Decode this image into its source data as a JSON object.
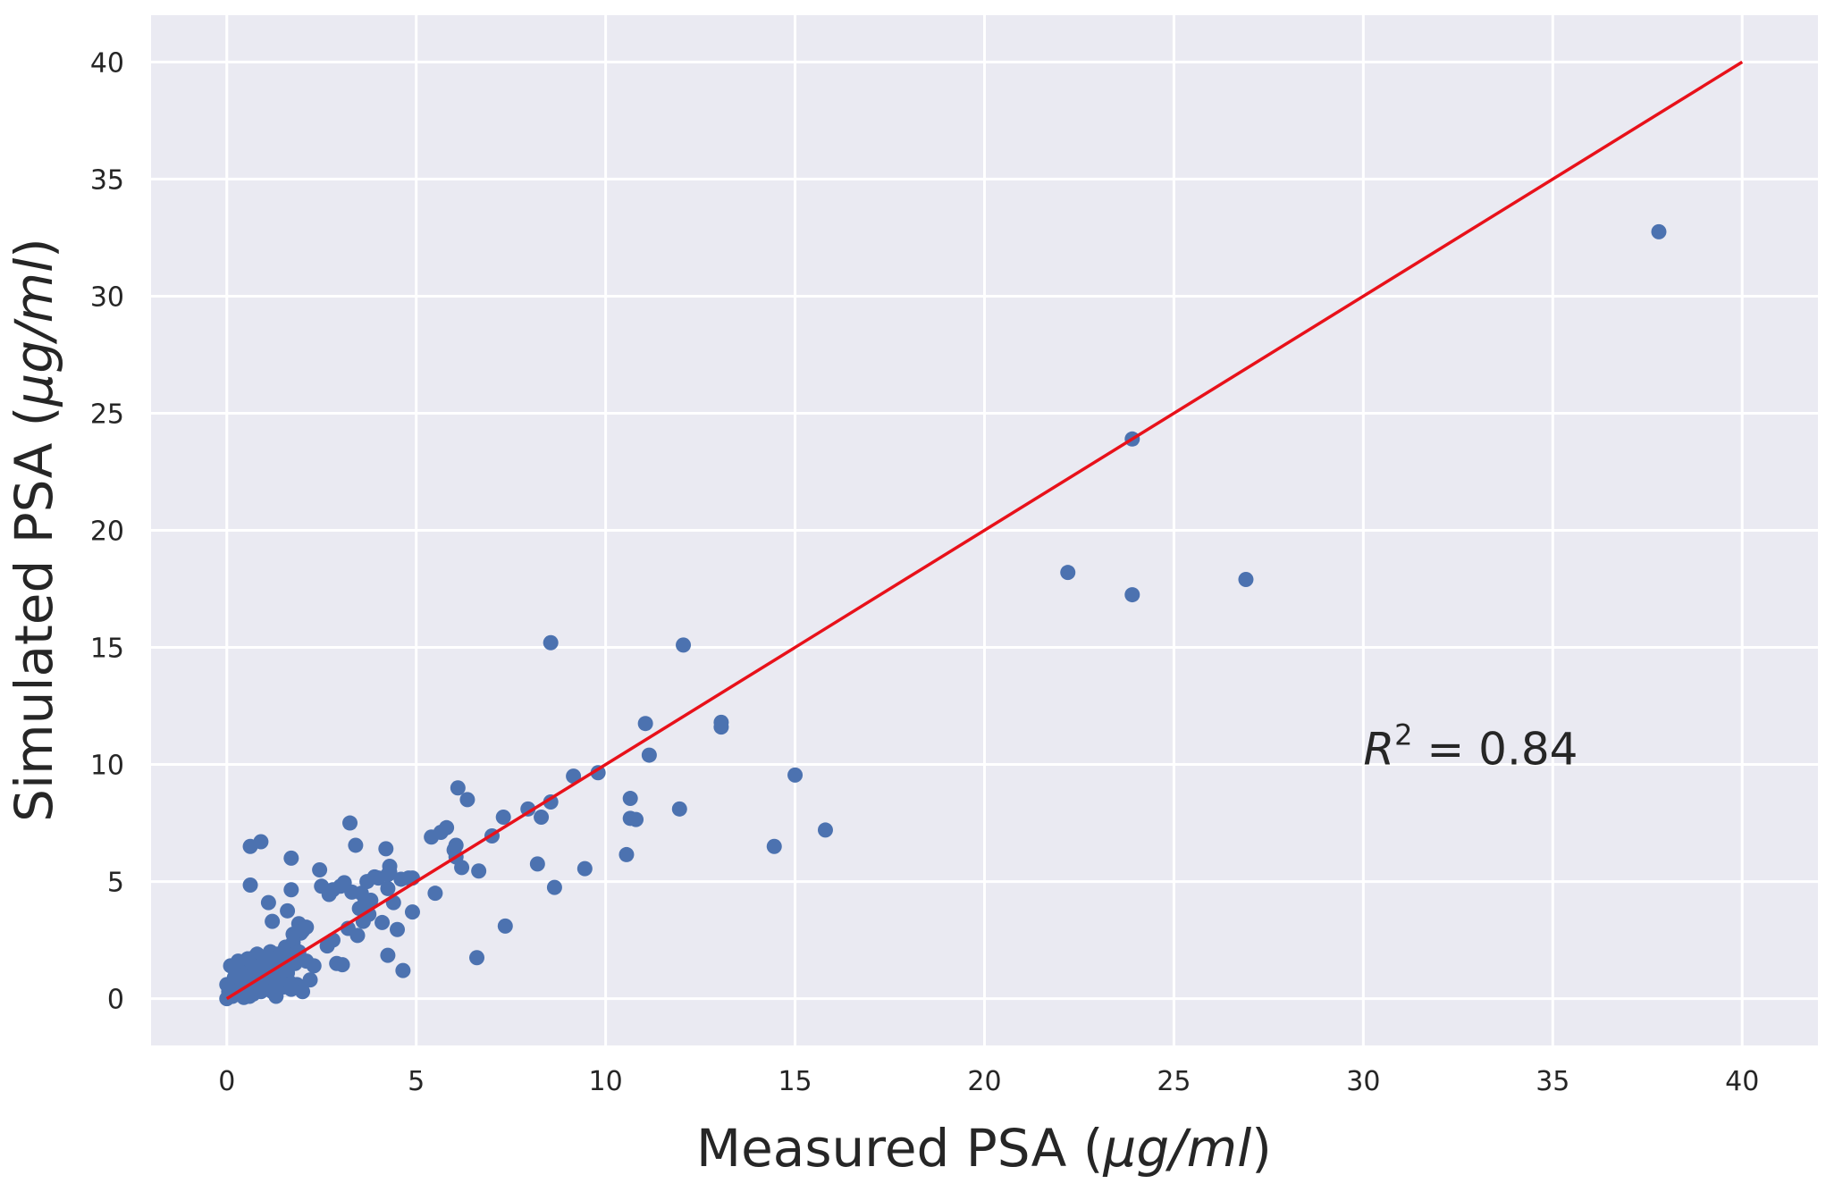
{
  "chart_data": {
    "type": "scatter",
    "xlabel": {
      "text": "Measured PSA ",
      "math": "μg/ml"
    },
    "ylabel": {
      "text": "Simulated PSA ",
      "math": "μg/ml"
    },
    "xlim": [
      -2,
      42
    ],
    "ylim": [
      -2,
      42
    ],
    "x_ticks": [
      0,
      5,
      10,
      15,
      20,
      25,
      30,
      35,
      40
    ],
    "y_ticks": [
      0,
      5,
      10,
      15,
      20,
      25,
      30,
      35,
      40
    ],
    "grid": true,
    "background_color": "#EAEAF2",
    "grid_color": "#FFFFFF",
    "point_color": "#4C72B0",
    "line_color": "#E8111A",
    "reference_line": {
      "x": [
        0,
        40
      ],
      "y": [
        0,
        40
      ]
    },
    "annotation": {
      "symbol": "R",
      "superscript": "2",
      "text": " = 0.84",
      "x": 30,
      "y": 10
    },
    "points": [
      [
        0.0,
        0.0
      ],
      [
        0.05,
        0.3
      ],
      [
        0.1,
        0.6
      ],
      [
        0.15,
        0.1
      ],
      [
        0.2,
        0.9
      ],
      [
        0.25,
        1.3
      ],
      [
        0.3,
        0.2
      ],
      [
        0.35,
        0.5
      ],
      [
        0.4,
        1.1
      ],
      [
        0.45,
        0.05
      ],
      [
        0.5,
        0.7
      ],
      [
        0.55,
        0.4
      ],
      [
        0.6,
        1.5
      ],
      [
        0.65,
        0.9
      ],
      [
        0.7,
        0.2
      ],
      [
        0.75,
        1.8
      ],
      [
        0.8,
        0.6
      ],
      [
        0.85,
        1.2
      ],
      [
        0.9,
        0.3
      ],
      [
        0.95,
        1.0
      ],
      [
        1.0,
        0.8
      ],
      [
        1.05,
        1.6
      ],
      [
        1.1,
        0.4
      ],
      [
        1.15,
        2.0
      ],
      [
        1.2,
        0.7
      ],
      [
        1.25,
        1.3
      ],
      [
        1.3,
        0.1
      ],
      [
        1.35,
        1.9
      ],
      [
        1.4,
        0.9
      ],
      [
        1.45,
        1.4
      ],
      [
        1.5,
        0.5
      ],
      [
        1.55,
        2.2
      ],
      [
        1.6,
        1.1
      ],
      [
        1.65,
        0.7
      ],
      [
        1.7,
        1.7
      ],
      [
        1.75,
        2.4
      ],
      [
        1.8,
        1.5
      ],
      [
        1.85,
        0.6
      ],
      [
        1.9,
        2.0
      ],
      [
        1.95,
        2.8
      ],
      [
        0.1,
        1.4
      ],
      [
        0.3,
        1.6
      ],
      [
        0.5,
        0.9
      ],
      [
        0.2,
        0.3
      ],
      [
        0.0,
        0.6
      ],
      [
        0.6,
        0.1
      ],
      [
        0.8,
        1.9
      ],
      [
        1.0,
        1.2
      ],
      [
        0.4,
        0.7
      ],
      [
        0.7,
        1.4
      ],
      [
        1.2,
        0.3
      ],
      [
        1.4,
        1.0
      ],
      [
        0.9,
        0.6
      ],
      [
        1.1,
        1.8
      ],
      [
        1.3,
        0.6
      ],
      [
        1.6,
        1.9
      ],
      [
        1.7,
        0.4
      ],
      [
        0.25,
        1.0
      ],
      [
        0.55,
        1.7
      ],
      [
        1.5,
        1.2
      ],
      [
        0.62,
        6.5
      ],
      [
        0.9,
        6.7
      ],
      [
        0.62,
        4.85
      ],
      [
        1.1,
        4.1
      ],
      [
        1.2,
        3.3
      ],
      [
        1.6,
        3.75
      ],
      [
        1.7,
        4.65
      ],
      [
        1.7,
        6.0
      ],
      [
        1.75,
        2.75
      ],
      [
        1.9,
        3.2
      ],
      [
        2.0,
        2.9
      ],
      [
        2.1,
        3.05
      ],
      [
        2.1,
        1.6
      ],
      [
        2.0,
        0.3
      ],
      [
        2.2,
        0.8
      ],
      [
        2.3,
        1.4
      ],
      [
        2.45,
        5.5
      ],
      [
        2.5,
        4.8
      ],
      [
        2.65,
        2.25
      ],
      [
        2.7,
        4.45
      ],
      [
        2.8,
        4.65
      ],
      [
        2.8,
        2.5
      ],
      [
        2.9,
        1.5
      ],
      [
        3.0,
        4.8
      ],
      [
        3.05,
        1.45
      ],
      [
        3.1,
        4.95
      ],
      [
        3.2,
        3.0
      ],
      [
        3.25,
        7.5
      ],
      [
        3.3,
        4.55
      ],
      [
        3.4,
        6.55
      ],
      [
        3.45,
        2.7
      ],
      [
        3.5,
        3.85
      ],
      [
        3.55,
        4.5
      ],
      [
        3.6,
        3.3
      ],
      [
        3.65,
        4.15
      ],
      [
        3.7,
        5.0
      ],
      [
        3.75,
        3.6
      ],
      [
        3.8,
        4.2
      ],
      [
        3.9,
        5.2
      ],
      [
        4.0,
        5.15
      ],
      [
        4.1,
        3.25
      ],
      [
        4.2,
        6.4
      ],
      [
        4.25,
        1.85
      ],
      [
        4.25,
        5.3
      ],
      [
        4.25,
        4.7
      ],
      [
        4.3,
        5.65
      ],
      [
        4.3,
        5.4
      ],
      [
        4.4,
        4.1
      ],
      [
        4.5,
        2.95
      ],
      [
        4.6,
        5.1
      ],
      [
        4.65,
        1.2
      ],
      [
        4.8,
        5.15
      ],
      [
        4.9,
        5.15
      ],
      [
        4.9,
        3.7
      ],
      [
        5.4,
        6.9
      ],
      [
        5.5,
        4.5
      ],
      [
        5.65,
        7.1
      ],
      [
        5.8,
        7.3
      ],
      [
        6.0,
        6.35
      ],
      [
        6.05,
        6.55
      ],
      [
        6.05,
        6.05
      ],
      [
        6.1,
        9.0
      ],
      [
        6.2,
        5.6
      ],
      [
        6.35,
        8.5
      ],
      [
        6.6,
        1.75
      ],
      [
        6.65,
        5.45
      ],
      [
        7.0,
        6.95
      ],
      [
        7.3,
        7.75
      ],
      [
        7.35,
        3.1
      ],
      [
        7.95,
        8.1
      ],
      [
        8.2,
        5.75
      ],
      [
        8.3,
        7.75
      ],
      [
        8.55,
        15.2
      ],
      [
        8.55,
        8.4
      ],
      [
        8.65,
        4.75
      ],
      [
        9.15,
        9.5
      ],
      [
        9.45,
        5.55
      ],
      [
        9.8,
        9.65
      ],
      [
        10.55,
        6.15
      ],
      [
        10.65,
        8.55
      ],
      [
        10.65,
        7.7
      ],
      [
        10.8,
        7.65
      ],
      [
        11.05,
        11.75
      ],
      [
        11.15,
        10.4
      ],
      [
        11.95,
        8.1
      ],
      [
        12.05,
        15.1
      ],
      [
        13.05,
        11.8
      ],
      [
        13.05,
        11.6
      ],
      [
        14.45,
        6.5
      ],
      [
        15.0,
        9.55
      ],
      [
        15.8,
        7.2
      ],
      [
        22.2,
        18.2
      ],
      [
        23.9,
        23.9
      ],
      [
        23.9,
        17.25
      ],
      [
        26.9,
        17.9
      ],
      [
        37.8,
        32.75
      ]
    ]
  }
}
